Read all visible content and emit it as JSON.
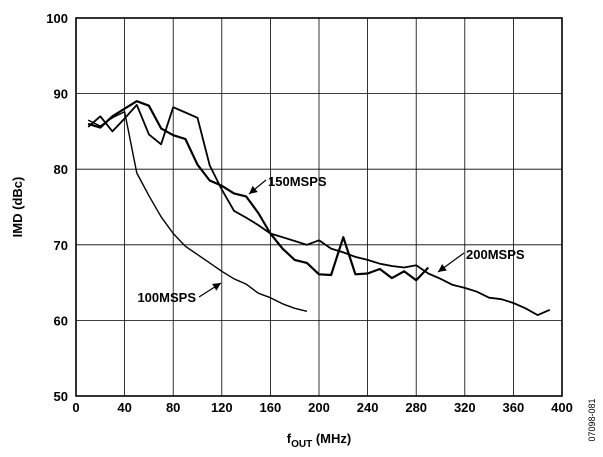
{
  "chart_data": {
    "type": "line",
    "xlabel_main": "f",
    "xlabel_sub": "OUT",
    "xlabel_unit": " (MHz)",
    "ylabel": "IMD (dBc)",
    "xlim": [
      0,
      400
    ],
    "ylim": [
      50,
      100
    ],
    "xticks": [
      0,
      40,
      80,
      120,
      160,
      200,
      240,
      280,
      320,
      360,
      400
    ],
    "yticks": [
      50,
      60,
      70,
      80,
      90,
      100
    ],
    "grid": true,
    "legend": "none (inline labels)",
    "figure_id": "07098-081",
    "series": [
      {
        "name": "100MSPS",
        "line_width": 1.4,
        "x": [
          10,
          20,
          30,
          40,
          50,
          60,
          70,
          80,
          90,
          100,
          110,
          120,
          130,
          140,
          150,
          160,
          170,
          180,
          190
        ],
        "y": [
          86.5,
          85.7,
          86.8,
          87.6,
          79.5,
          76.5,
          73.7,
          71.5,
          69.8,
          68.7,
          67.6,
          66.5,
          65.5,
          64.8,
          63.6,
          63.0,
          62.2,
          61.6,
          61.2
        ]
      },
      {
        "name": "150MSPS",
        "line_width": 2.2,
        "x": [
          10,
          20,
          30,
          40,
          50,
          60,
          70,
          80,
          90,
          100,
          110,
          120,
          130,
          140,
          150,
          160,
          170,
          180,
          190,
          200,
          210,
          220,
          230,
          240,
          250,
          260,
          270,
          280,
          290
        ],
        "y": [
          86.0,
          85.5,
          87.0,
          88.0,
          89.0,
          88.4,
          85.4,
          84.5,
          84.0,
          80.6,
          78.5,
          77.8,
          76.8,
          76.4,
          74.2,
          71.5,
          69.5,
          68.0,
          67.6,
          66.1,
          66.0,
          71.0,
          66.1,
          66.2,
          66.8,
          65.6,
          66.5,
          65.3,
          67.0
        ]
      },
      {
        "name": "200MSPS",
        "line_width": 1.8,
        "x": [
          10,
          20,
          30,
          40,
          50,
          60,
          70,
          80,
          90,
          100,
          110,
          120,
          130,
          140,
          150,
          160,
          170,
          180,
          190,
          200,
          210,
          220,
          230,
          240,
          250,
          260,
          270,
          280,
          290,
          300,
          310,
          320,
          330,
          340,
          350,
          360,
          370,
          380,
          390
        ],
        "y": [
          85.6,
          87.0,
          85.0,
          86.7,
          88.5,
          84.6,
          83.3,
          88.2,
          87.5,
          86.8,
          80.5,
          77.3,
          74.5,
          73.6,
          72.6,
          71.5,
          71.0,
          70.5,
          70.0,
          70.6,
          69.5,
          69.0,
          68.4,
          68.0,
          67.5,
          67.2,
          67.0,
          67.3,
          66.2,
          65.5,
          64.7,
          64.3,
          63.8,
          63.0,
          62.8,
          62.3,
          61.6,
          60.7,
          61.4
        ]
      }
    ],
    "annotations": [
      {
        "text": "150MSPS",
        "series": "150MSPS"
      },
      {
        "text": "200MSPS",
        "series": "200MSPS"
      },
      {
        "text": "100MSPS",
        "series": "100MSPS"
      }
    ]
  }
}
